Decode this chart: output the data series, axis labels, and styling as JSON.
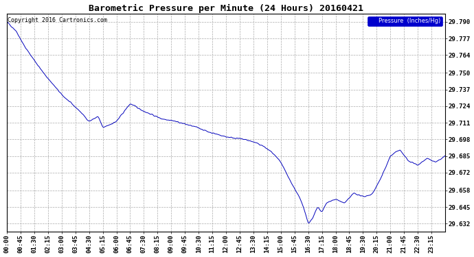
{
  "title": "Barometric Pressure per Minute (24 Hours) 20160421",
  "copyright": "Copyright 2016 Cartronics.com",
  "legend_label": "Pressure  (Inches/Hg)",
  "ylabel_ticks": [
    29.632,
    29.645,
    29.658,
    29.672,
    29.685,
    29.698,
    29.711,
    29.724,
    29.737,
    29.75,
    29.764,
    29.777,
    29.79
  ],
  "ylim": [
    29.6255,
    29.7965
  ],
  "line_color": "#0000bb",
  "bg_color": "#ffffff",
  "grid_color": "#aaaaaa",
  "title_fontsize": 9.5,
  "tick_fontsize": 6.5,
  "copyright_fontsize": 6.0,
  "x_tick_labels": [
    "00:00",
    "00:45",
    "01:30",
    "02:15",
    "03:00",
    "03:45",
    "04:30",
    "05:15",
    "06:00",
    "06:45",
    "07:30",
    "08:15",
    "09:00",
    "09:45",
    "10:30",
    "11:15",
    "12:00",
    "12:45",
    "13:30",
    "14:15",
    "15:00",
    "15:45",
    "16:30",
    "17:15",
    "18:00",
    "18:45",
    "19:30",
    "20:15",
    "21:00",
    "21:45",
    "22:30",
    "23:15"
  ],
  "n_minutes": 1440,
  "keypoints_t": [
    0,
    30,
    60,
    120,
    180,
    240,
    270,
    300,
    315,
    360,
    405,
    450,
    510,
    540,
    570,
    630,
    660,
    690,
    720,
    750,
    780,
    810,
    840,
    870,
    900,
    930,
    960,
    975,
    990,
    1005,
    1020,
    1035,
    1050,
    1065,
    1080,
    1110,
    1140,
    1170,
    1200,
    1230,
    1260,
    1290,
    1320,
    1350,
    1380,
    1410,
    1440
  ],
  "keypoints_v": [
    29.79,
    29.783,
    29.77,
    29.75,
    29.733,
    29.72,
    29.712,
    29.716,
    29.707,
    29.712,
    29.726,
    29.72,
    29.714,
    29.713,
    29.711,
    29.707,
    29.704,
    29.702,
    29.7,
    29.699,
    29.698,
    29.696,
    29.693,
    29.688,
    29.68,
    29.666,
    29.653,
    29.645,
    29.632,
    29.636,
    29.645,
    29.641,
    29.648,
    29.65,
    29.651,
    29.648,
    29.656,
    29.653,
    29.655,
    29.668,
    29.685,
    29.69,
    29.681,
    29.678,
    29.683,
    29.68,
    29.685
  ]
}
